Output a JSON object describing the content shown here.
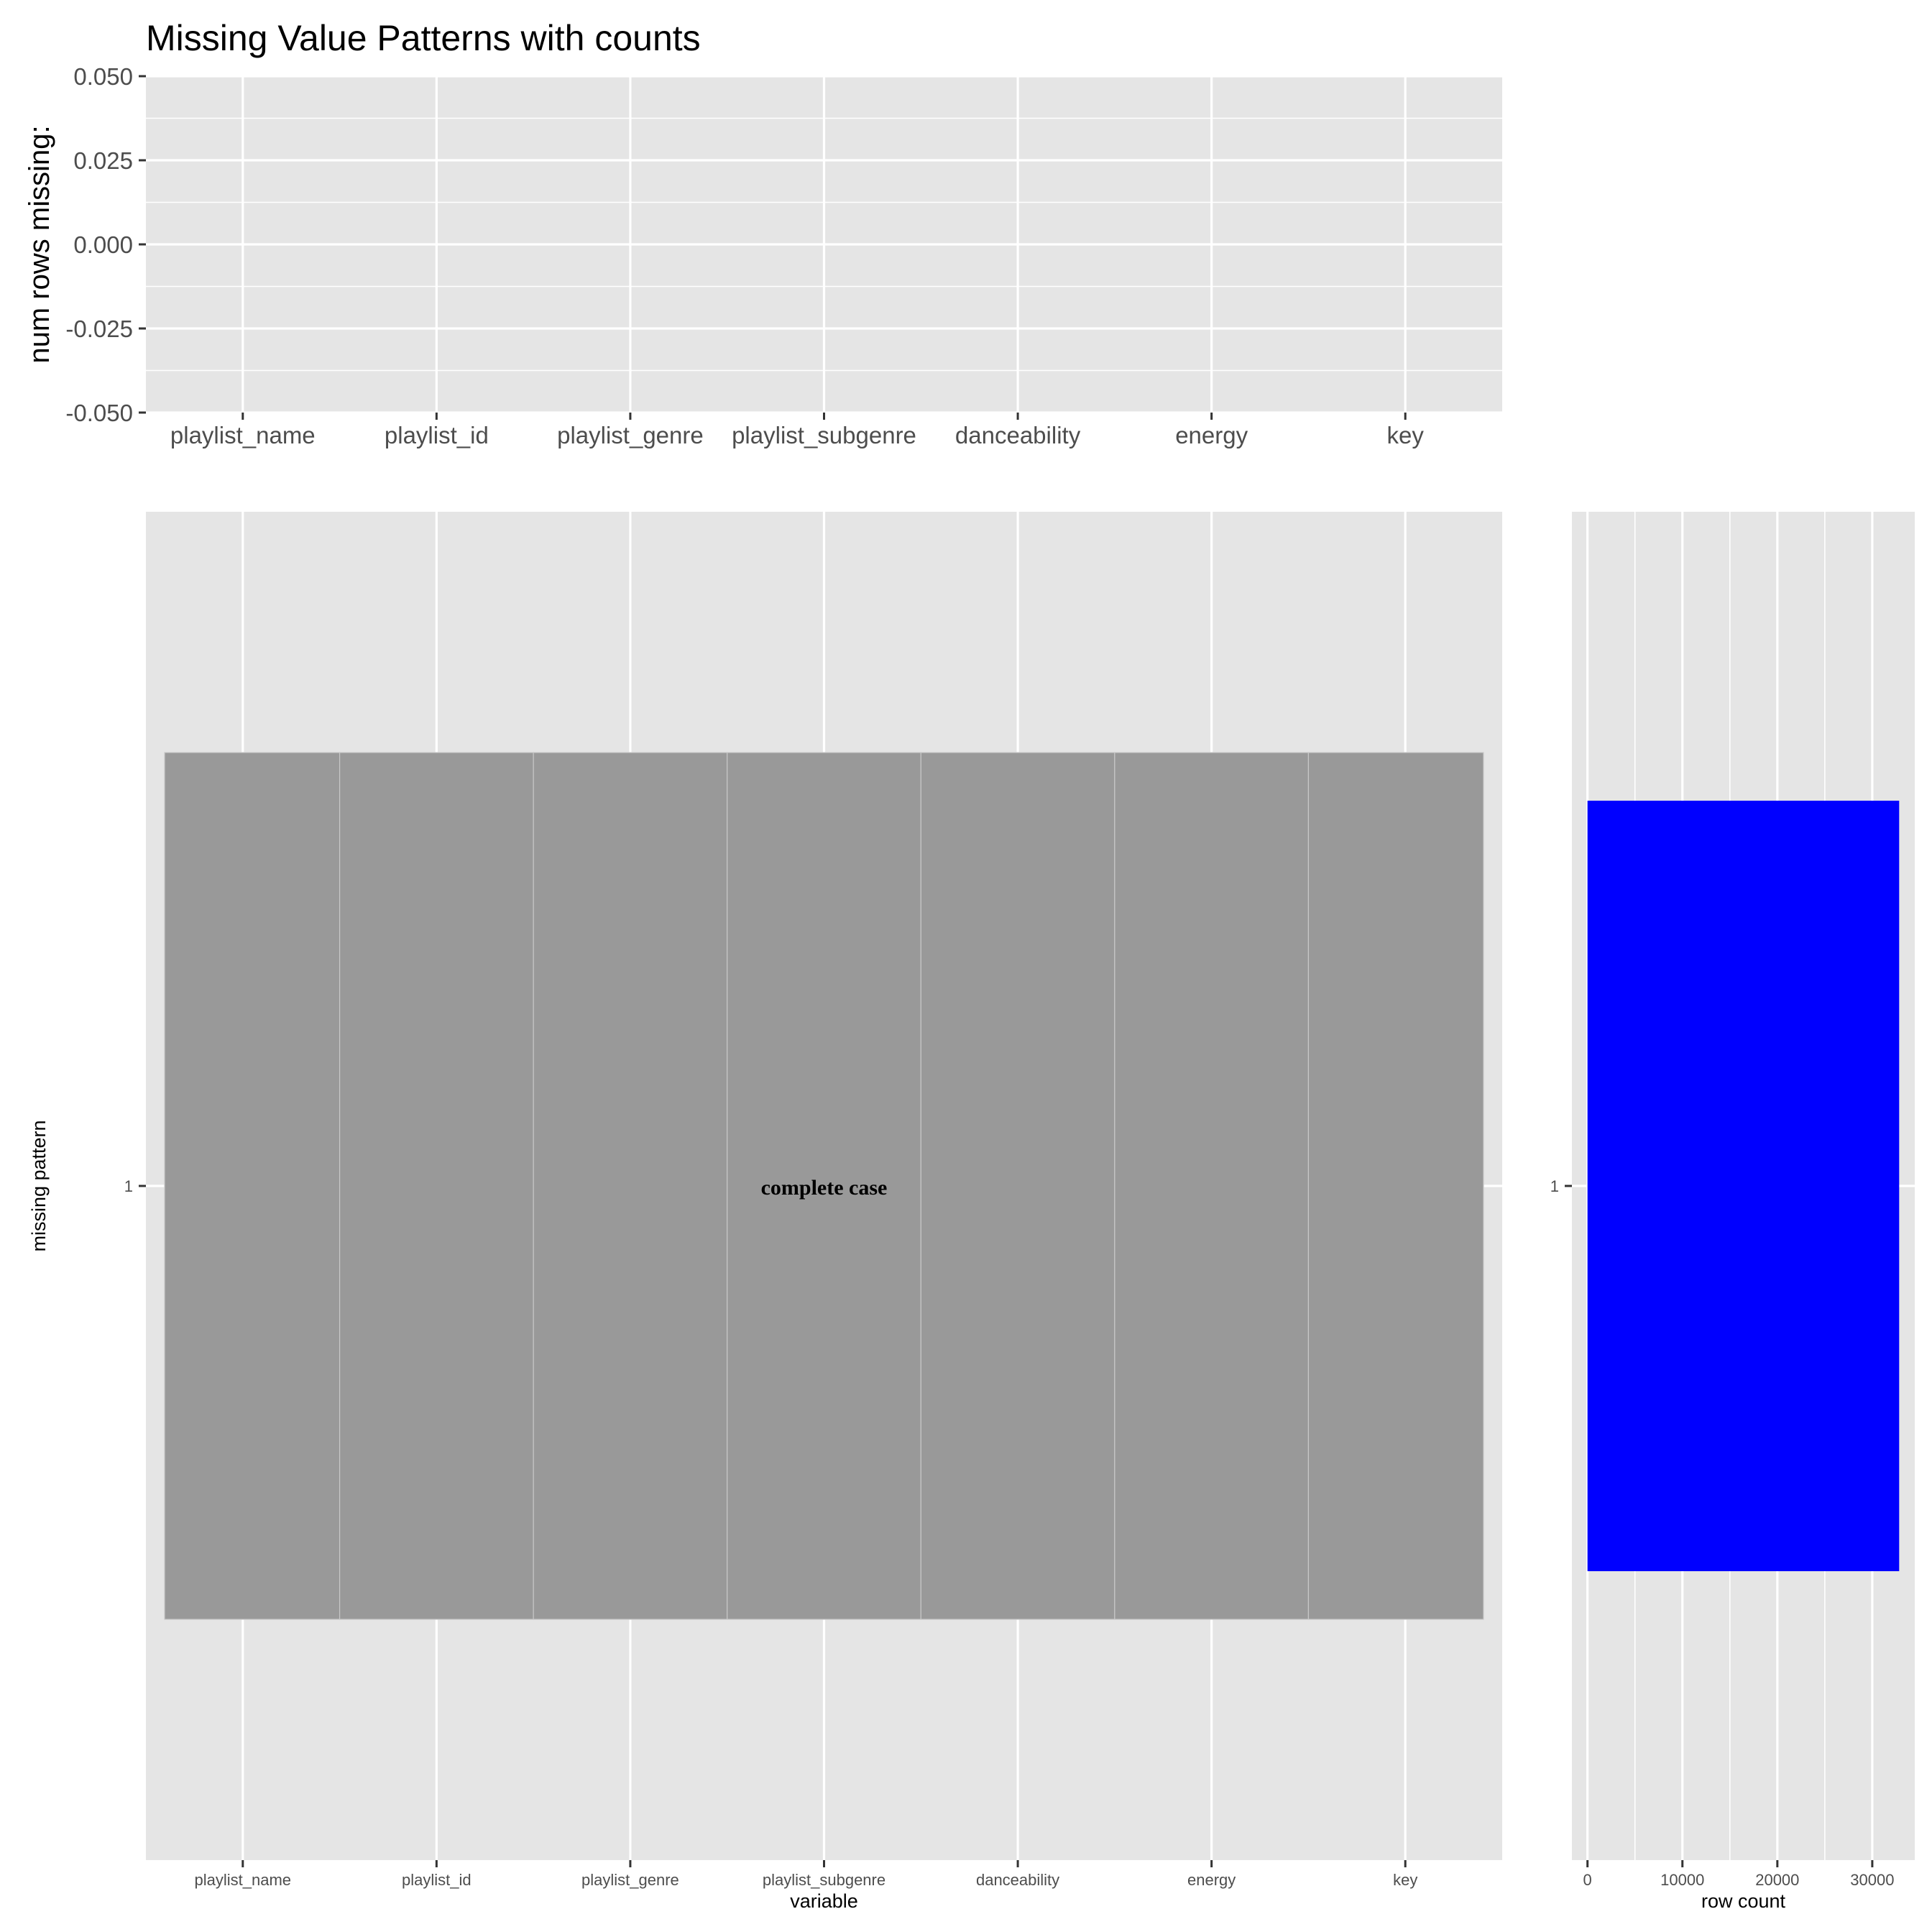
{
  "chart_data": [
    {
      "type": "bar",
      "title": "Missing Value Patterns with counts",
      "ylabel": "num rows missing:",
      "categories": [
        "playlist_name",
        "playlist_id",
        "playlist_genre",
        "playlist_subgenre",
        "danceability",
        "energy",
        "key"
      ],
      "values": [
        0,
        0,
        0,
        0,
        0,
        0,
        0
      ],
      "ylim": [
        -0.05,
        0.05
      ],
      "yticks": [
        "0.050",
        "0.025",
        "0.000",
        "-0.025",
        "-0.050"
      ],
      "grid": true
    },
    {
      "type": "heatmap",
      "xlabel": "variable",
      "ylabel": "missing pattern",
      "x": [
        "playlist_name",
        "playlist_id",
        "playlist_genre",
        "playlist_subgenre",
        "danceability",
        "energy",
        "key"
      ],
      "y": [
        "1"
      ],
      "cells": [
        [
          0,
          0,
          0,
          0,
          0,
          0,
          0
        ]
      ],
      "annotation": "complete case",
      "colors": {
        "present": "#999999"
      },
      "grid": true
    },
    {
      "type": "bar",
      "orientation": "horizontal",
      "xlabel": "row count",
      "categories": [
        "1"
      ],
      "values": [
        32833
      ],
      "xlim": [
        -1642,
        34475
      ],
      "xticks": [
        "0",
        "10000",
        "20000",
        "30000"
      ],
      "colors": {
        "bar": "#0000FF"
      },
      "grid": true
    }
  ],
  "colors": {
    "panel": "#E5E5E5",
    "grid": "#FFFFFF",
    "text": "#000000",
    "tick_text": "#4D4D4D",
    "tick": "#333333"
  }
}
